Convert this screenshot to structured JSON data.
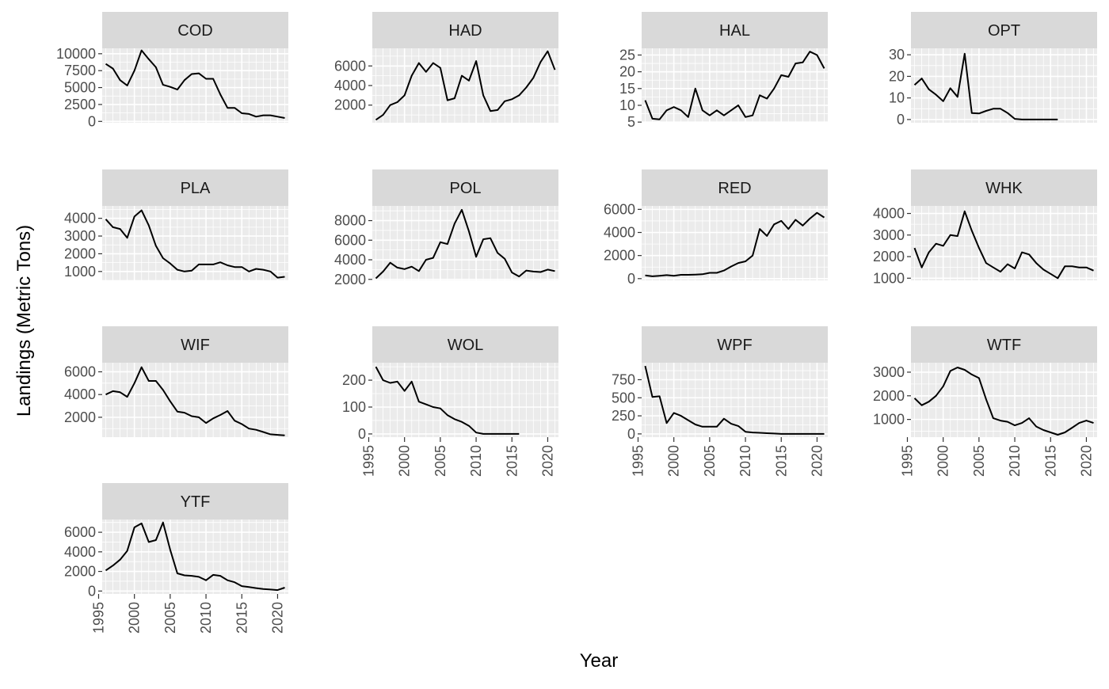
{
  "chart_data": {
    "type": "line",
    "layout": "facet_wrap",
    "xlabel": "Year",
    "ylabel": "Landings (Metric Tons)",
    "xlim": [
      1995.5,
      2021.5
    ],
    "x_ticks": [
      1995,
      2000,
      2005,
      2010,
      2015,
      2020
    ],
    "colors": {
      "panel_background": "#ebebeb",
      "grid": "#ffffff",
      "strip_background": "#d9d9d9",
      "line": "#000000",
      "tick": "#333333"
    },
    "panels": [
      {
        "name": "COD",
        "ylim": [
          -200,
          10800
        ],
        "y_ticks": [
          0,
          2500,
          5000,
          7500,
          10000
        ],
        "y_labels": [
          "0",
          "2500",
          "5000",
          "7500",
          "10000"
        ],
        "x": [
          1996,
          1997,
          1998,
          1999,
          2000,
          2001,
          2002,
          2003,
          2004,
          2005,
          2006,
          2007,
          2008,
          2009,
          2010,
          2011,
          2012,
          2013,
          2014,
          2015,
          2016,
          2017,
          2018,
          2019,
          2020,
          2021
        ],
        "y": [
          8500,
          7800,
          6100,
          5300,
          7500,
          10500,
          9200,
          8000,
          5400,
          5100,
          4700,
          6100,
          7000,
          7100,
          6300,
          6300,
          4000,
          2000,
          2000,
          1200,
          1100,
          700,
          900,
          900,
          700,
          500
        ]
      },
      {
        "name": "HAD",
        "ylim": [
          200,
          7800
        ],
        "y_ticks": [
          2000,
          4000,
          6000
        ],
        "y_labels": [
          "2000",
          "4000",
          "6000"
        ],
        "x": [
          1996,
          1997,
          1998,
          1999,
          2000,
          2001,
          2002,
          2003,
          2004,
          2005,
          2006,
          2007,
          2008,
          2009,
          2010,
          2011,
          2012,
          2013,
          2014,
          2015,
          2016,
          2017,
          2018,
          2019,
          2020,
          2021
        ],
        "y": [
          500,
          1000,
          2000,
          2300,
          3000,
          5000,
          6300,
          5400,
          6300,
          5800,
          2500,
          2700,
          5000,
          4500,
          6500,
          3000,
          1400,
          1500,
          2400,
          2600,
          3000,
          3800,
          4800,
          6400,
          7500,
          5600
        ]
      },
      {
        "name": "HAL",
        "ylim": [
          4.8,
          27
        ],
        "y_ticks": [
          5,
          10,
          15,
          20,
          25
        ],
        "y_labels": [
          "5",
          "10",
          "15",
          "20",
          "25"
        ],
        "x": [
          1996,
          1997,
          1998,
          1999,
          2000,
          2001,
          2002,
          2003,
          2004,
          2005,
          2006,
          2007,
          2008,
          2009,
          2010,
          2011,
          2012,
          2013,
          2014,
          2015,
          2016,
          2017,
          2018,
          2019,
          2020,
          2021
        ],
        "y": [
          11.5,
          6,
          5.8,
          8.5,
          9.5,
          8.5,
          6.5,
          15,
          8.5,
          7,
          8.5,
          7,
          8.5,
          10,
          6.5,
          7,
          13,
          12,
          15,
          19,
          18.5,
          22.5,
          22.8,
          26,
          25,
          21
        ]
      },
      {
        "name": "OPT",
        "ylim": [
          -1.5,
          33
        ],
        "y_ticks": [
          0,
          10,
          20,
          30
        ],
        "y_labels": [
          "0",
          "10",
          "20",
          "30"
        ],
        "x": [
          1996,
          1997,
          1998,
          1999,
          2000,
          2001,
          2002,
          2003,
          2004,
          2005,
          2006,
          2007,
          2008,
          2009,
          2010,
          2011,
          2012,
          2013,
          2014,
          2015,
          2016
        ],
        "y": [
          16,
          19,
          14,
          11.5,
          8.5,
          14.5,
          10.5,
          30.5,
          3,
          2.8,
          4,
          5,
          5,
          3,
          0.3,
          0,
          0,
          0,
          0,
          0,
          0
        ]
      },
      {
        "name": "PLA",
        "ylim": [
          500,
          4700
        ],
        "y_ticks": [
          1000,
          2000,
          3000,
          4000
        ],
        "y_labels": [
          "1000",
          "2000",
          "3000",
          "4000"
        ],
        "x": [
          1996,
          1997,
          1998,
          1999,
          2000,
          2001,
          2002,
          2003,
          2004,
          2005,
          2006,
          2007,
          2008,
          2009,
          2010,
          2011,
          2012,
          2013,
          2014,
          2015,
          2016,
          2017,
          2018,
          2019,
          2020,
          2021
        ],
        "y": [
          3950,
          3500,
          3400,
          2900,
          4100,
          4450,
          3600,
          2450,
          1750,
          1450,
          1100,
          1000,
          1050,
          1400,
          1400,
          1400,
          1520,
          1350,
          1250,
          1250,
          1000,
          1150,
          1100,
          1000,
          650,
          700
        ]
      },
      {
        "name": "POL",
        "ylim": [
          1900,
          9500
        ],
        "y_ticks": [
          2000,
          4000,
          6000,
          8000
        ],
        "y_labels": [
          "2000",
          "4000",
          "6000",
          "8000"
        ],
        "x": [
          1996,
          1997,
          1998,
          1999,
          2000,
          2001,
          2002,
          2003,
          2004,
          2005,
          2006,
          2007,
          2008,
          2009,
          2010,
          2011,
          2012,
          2013,
          2014,
          2015,
          2016,
          2017,
          2018,
          2019,
          2020,
          2021
        ],
        "y": [
          2100,
          2800,
          3700,
          3200,
          3050,
          3300,
          2850,
          4000,
          4200,
          5800,
          5600,
          7700,
          9100,
          6900,
          4300,
          6100,
          6200,
          4700,
          4100,
          2700,
          2300,
          2900,
          2800,
          2750,
          3000,
          2850
        ]
      },
      {
        "name": "RED",
        "ylim": [
          -150,
          6300
        ],
        "y_ticks": [
          0,
          2000,
          4000,
          6000
        ],
        "y_labels": [
          "0",
          "2000",
          "4000",
          "6000"
        ],
        "x": [
          1996,
          1997,
          1998,
          1999,
          2000,
          2001,
          2002,
          2003,
          2004,
          2005,
          2006,
          2007,
          2008,
          2009,
          2010,
          2011,
          2012,
          2013,
          2014,
          2015,
          2016,
          2017,
          2018,
          2019,
          2020,
          2021
        ],
        "y": [
          280,
          200,
          250,
          300,
          250,
          330,
          330,
          350,
          380,
          500,
          500,
          700,
          1050,
          1350,
          1500,
          2000,
          4300,
          3700,
          4700,
          5000,
          4300,
          5100,
          4600,
          5200,
          5700,
          5300
        ]
      },
      {
        "name": "WHK",
        "ylim": [
          900,
          4350
        ],
        "y_ticks": [
          1000,
          2000,
          3000,
          4000
        ],
        "y_labels": [
          "1000",
          "2000",
          "3000",
          "4000"
        ],
        "x": [
          1996,
          1997,
          1998,
          1999,
          2000,
          2001,
          2002,
          2003,
          2004,
          2005,
          2006,
          2007,
          2008,
          2009,
          2010,
          2011,
          2012,
          2013,
          2014,
          2015,
          2016,
          2017,
          2018,
          2019,
          2020,
          2021
        ],
        "y": [
          2400,
          1500,
          2200,
          2600,
          2500,
          3000,
          2950,
          4100,
          3200,
          2400,
          1700,
          1500,
          1300,
          1650,
          1450,
          2200,
          2100,
          1700,
          1400,
          1200,
          1000,
          1550,
          1550,
          1500,
          1500,
          1350
        ]
      },
      {
        "name": "WIF",
        "ylim": [
          250,
          6800
        ],
        "y_ticks": [
          2000,
          4000,
          6000
        ],
        "y_labels": [
          "2000",
          "4000",
          "6000"
        ],
        "x": [
          1996,
          1997,
          1998,
          1999,
          2000,
          2001,
          2002,
          2003,
          2004,
          2005,
          2006,
          2007,
          2008,
          2009,
          2010,
          2011,
          2012,
          2013,
          2014,
          2015,
          2016,
          2017,
          2018,
          2019,
          2020,
          2021
        ],
        "y": [
          4000,
          4300,
          4200,
          3800,
          5000,
          6400,
          5200,
          5200,
          4400,
          3400,
          2500,
          2400,
          2100,
          2000,
          1500,
          1900,
          2200,
          2550,
          1700,
          1400,
          1000,
          900,
          700,
          500,
          450,
          400
        ]
      },
      {
        "name": "WOL",
        "ylim": [
          -12,
          265
        ],
        "y_ticks": [
          0,
          100,
          200
        ],
        "y_labels": [
          "0",
          "100",
          "200"
        ],
        "x": [
          1996,
          1997,
          1998,
          1999,
          2000,
          2001,
          2002,
          2003,
          2004,
          2005,
          2006,
          2007,
          2008,
          2009,
          2010,
          2011,
          2012,
          2013,
          2014,
          2015,
          2016
        ],
        "y": [
          250,
          200,
          190,
          195,
          160,
          195,
          120,
          110,
          100,
          95,
          70,
          55,
          45,
          30,
          5,
          0,
          0,
          0,
          0,
          0,
          0
        ]
      },
      {
        "name": "WPF",
        "ylim": [
          -45,
          985
        ],
        "y_ticks": [
          0,
          250,
          500,
          750
        ],
        "y_labels": [
          "0",
          "250",
          "500",
          "750"
        ],
        "x": [
          1996,
          1997,
          1998,
          1999,
          2000,
          2001,
          2002,
          2003,
          2004,
          2005,
          2006,
          2007,
          2008,
          2009,
          2010,
          2011,
          2012,
          2013,
          2014,
          2015,
          2016,
          2017,
          2018,
          2019,
          2020,
          2021
        ],
        "y": [
          940,
          510,
          520,
          150,
          290,
          250,
          190,
          130,
          100,
          100,
          100,
          210,
          140,
          110,
          30,
          20,
          15,
          10,
          5,
          0,
          0,
          0,
          0,
          0,
          0,
          0
        ]
      },
      {
        "name": "WTF",
        "ylim": [
          250,
          3400
        ],
        "y_ticks": [
          1000,
          2000,
          3000
        ],
        "y_labels": [
          "1000",
          "2000",
          "3000"
        ],
        "x": [
          1996,
          1997,
          1998,
          1999,
          2000,
          2001,
          2002,
          2003,
          2004,
          2005,
          2006,
          2007,
          2008,
          2009,
          2010,
          2011,
          2012,
          2013,
          2014,
          2015,
          2016,
          2017,
          2018,
          2019,
          2020,
          2021
        ],
        "y": [
          1900,
          1600,
          1750,
          2000,
          2400,
          3050,
          3200,
          3100,
          2900,
          2750,
          1850,
          1050,
          950,
          900,
          750,
          850,
          1050,
          700,
          550,
          450,
          350,
          450,
          650,
          850,
          950,
          850
        ]
      },
      {
        "name": "YTF",
        "ylim": [
          -300,
          7300
        ],
        "y_ticks": [
          0,
          2000,
          4000,
          6000
        ],
        "y_labels": [
          "0",
          "2000",
          "4000",
          "6000"
        ],
        "x": [
          1996,
          1997,
          1998,
          1999,
          2000,
          2001,
          2002,
          2003,
          2004,
          2005,
          2006,
          2007,
          2008,
          2009,
          2010,
          2011,
          2012,
          2013,
          2014,
          2015,
          2016,
          2017,
          2018,
          2019,
          2020,
          2021
        ],
        "y": [
          2100,
          2600,
          3200,
          4100,
          6500,
          6900,
          5000,
          5200,
          7000,
          4200,
          1800,
          1600,
          1550,
          1450,
          1100,
          1650,
          1550,
          1100,
          900,
          500,
          400,
          300,
          200,
          150,
          100,
          350
        ]
      }
    ]
  }
}
